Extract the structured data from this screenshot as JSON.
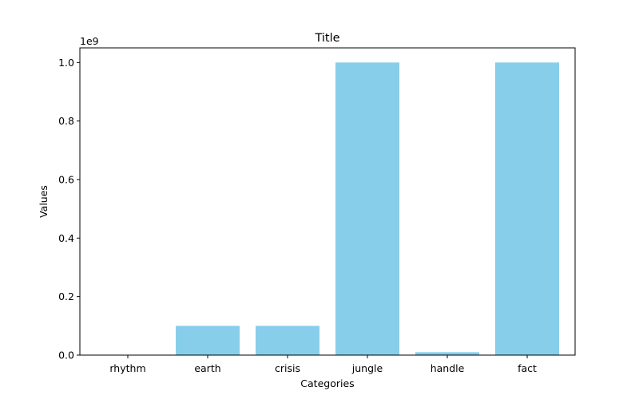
{
  "chart_data": {
    "type": "bar",
    "title": "Title",
    "xlabel": "Categories",
    "ylabel": "Values",
    "y_offset_label": "1e9",
    "y_scale_factor": 1000000000,
    "categories": [
      "rhythm",
      "earth",
      "crisis",
      "jungle",
      "handle",
      "fact"
    ],
    "values": [
      1000,
      100000000,
      100000000,
      1000000000,
      10000000,
      1000000000
    ],
    "ylim": [
      0,
      1050000000
    ],
    "yticks": [
      {
        "value": 0,
        "label": "0.0"
      },
      {
        "value": 200000000,
        "label": "0.2"
      },
      {
        "value": 400000000,
        "label": "0.4"
      },
      {
        "value": 600000000,
        "label": "0.6"
      },
      {
        "value": 800000000,
        "label": "0.8"
      },
      {
        "value": 1000000000,
        "label": "1.0"
      }
    ],
    "grid": false,
    "legend": "none",
    "colors": {
      "bar": "#87CEEB",
      "axis": "#000000",
      "background": "#ffffff"
    }
  }
}
